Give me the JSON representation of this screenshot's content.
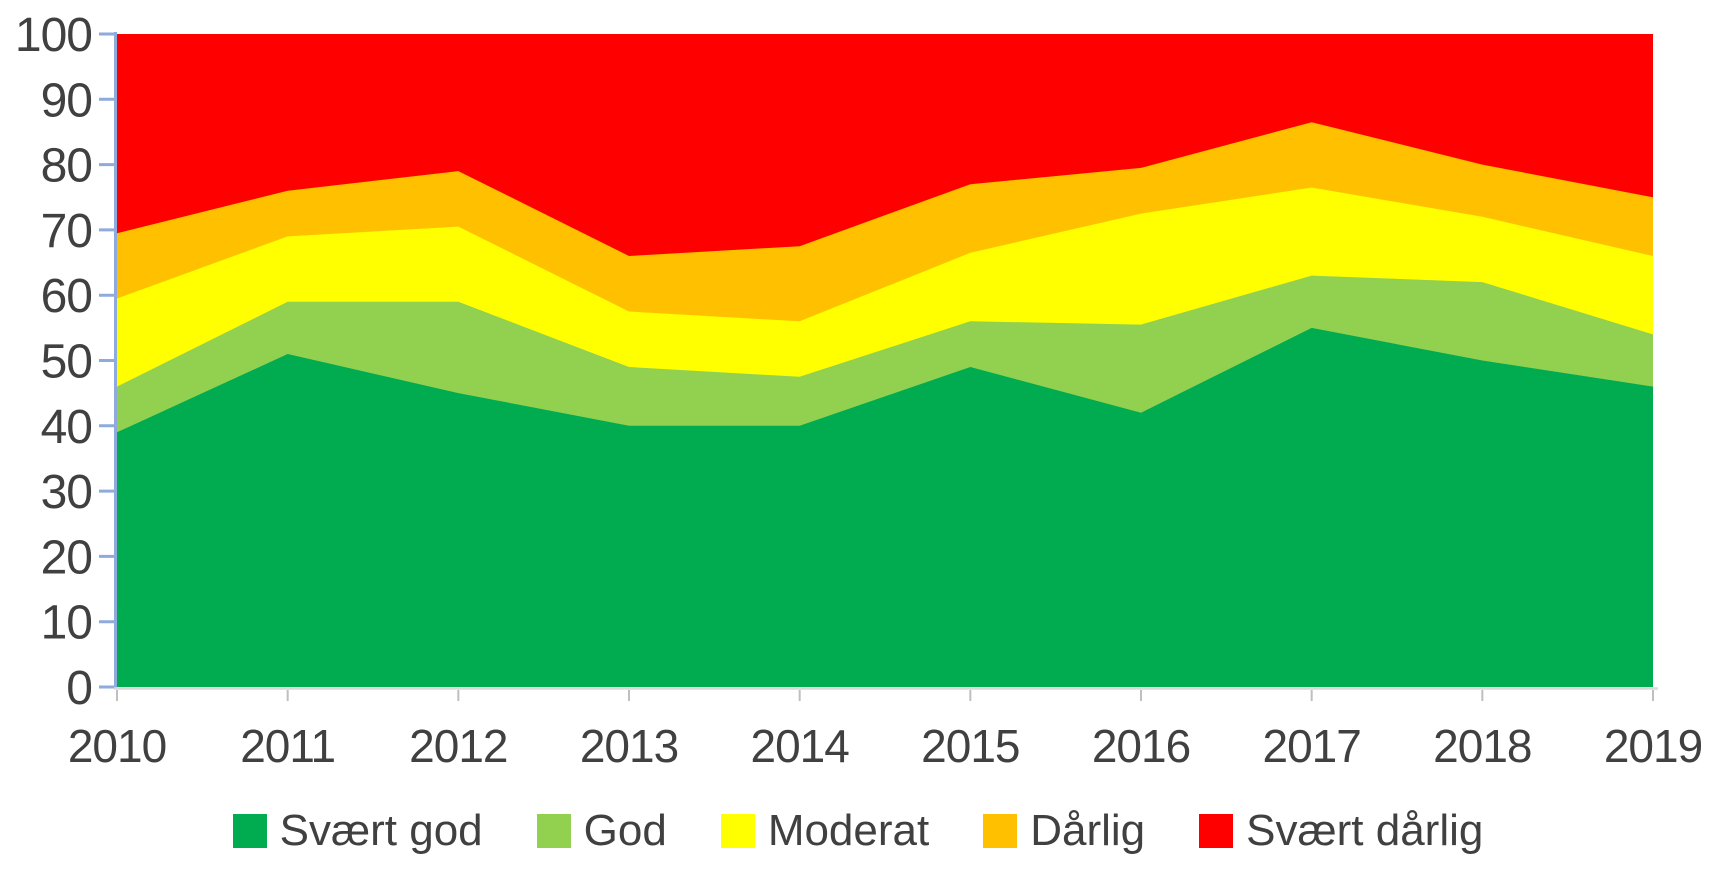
{
  "chart_data": {
    "type": "area",
    "stacked": true,
    "stack_total": 100,
    "title": "",
    "xlabel": "",
    "ylabel": "",
    "x": [
      2010,
      2011,
      2012,
      2013,
      2014,
      2015,
      2016,
      2017,
      2018,
      2019
    ],
    "series": [
      {
        "name": "Svært god",
        "color": "#00AC4F",
        "values": [
          39,
          51,
          45,
          40,
          40,
          49,
          42,
          55,
          50,
          46
        ]
      },
      {
        "name": "God",
        "color": "#92D050",
        "values": [
          7,
          8,
          14,
          9,
          7.5,
          7,
          13.5,
          8,
          12,
          8
        ]
      },
      {
        "name": "Moderat",
        "color": "#FFFF00",
        "values": [
          13.5,
          10,
          11.5,
          8.5,
          8.5,
          10.5,
          17,
          13.5,
          10,
          12
        ]
      },
      {
        "name": "Dårlig",
        "color": "#FFC000",
        "values": [
          10,
          7,
          8.5,
          8.5,
          11.5,
          10.5,
          7,
          10,
          8,
          9
        ]
      },
      {
        "name": "Svært dårlig",
        "color": "#FF0000",
        "values": [
          30.5,
          24,
          21,
          34,
          32.5,
          23,
          20.5,
          13.5,
          20,
          25
        ]
      }
    ],
    "cumulative_tops": {
      "2010": [
        39,
        46,
        59.5,
        69.5,
        100
      ],
      "2011": [
        51,
        59,
        69,
        76,
        100
      ],
      "2012": [
        45,
        59,
        70.5,
        79,
        100
      ],
      "2013": [
        40,
        49,
        57.5,
        66,
        100
      ],
      "2014": [
        40,
        47.5,
        56,
        67.5,
        100
      ],
      "2015": [
        49,
        56,
        66.5,
        77,
        100
      ],
      "2016": [
        42,
        55.5,
        72.5,
        79.5,
        100
      ],
      "2017": [
        55,
        63,
        76.5,
        86.5,
        100
      ],
      "2018": [
        50,
        62,
        72,
        80,
        100
      ],
      "2019": [
        46,
        54,
        66,
        75,
        100
      ]
    },
    "y_ticks": [
      0,
      10,
      20,
      30,
      40,
      50,
      60,
      70,
      80,
      90,
      100
    ],
    "ylim": [
      0,
      100
    ],
    "grid": false,
    "legend_position": "bottom"
  },
  "axes": {
    "y_axis_color": "#8FAADC",
    "y_tick_color": "#8FAADC",
    "x_axis_color": "#D9D9D9",
    "x_tick_color": "#BFBFBF",
    "label_color": "#404040"
  },
  "legend": {
    "items": [
      {
        "label": "Svært god"
      },
      {
        "label": "God"
      },
      {
        "label": "Moderat"
      },
      {
        "label": "Dårlig"
      },
      {
        "label": "Svært dårlig"
      }
    ]
  }
}
